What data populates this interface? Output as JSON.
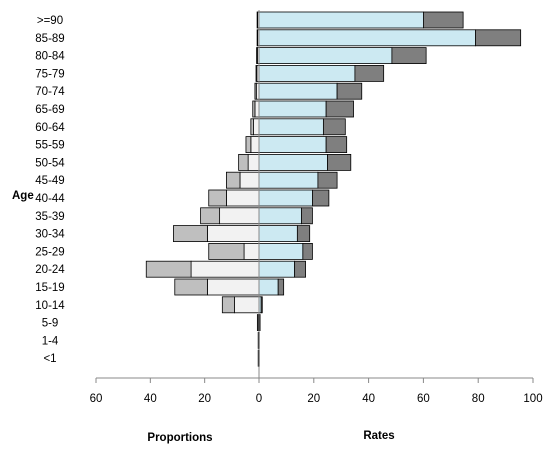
{
  "chart_data": {
    "type": "bar",
    "orientation": "horizontal",
    "categories": [
      ">=90",
      "85-89",
      "80-84",
      "75-79",
      "70-74",
      "65-69",
      "60-64",
      "55-59",
      "50-54",
      "45-49",
      "40-44",
      "35-39",
      "30-34",
      "25-29",
      "20-24",
      "15-19",
      "10-14",
      "5-9",
      "1-4",
      "<1"
    ],
    "left_panel": {
      "label": "Proportions",
      "xlim": [
        0,
        60
      ],
      "ticks": [
        "60",
        "40",
        "20",
        "0"
      ],
      "series": [
        {
          "values": [
            0.5,
            0.5,
            0.6,
            0.8,
            1.0,
            1.5,
            2.0,
            3.0,
            4.0,
            7.0,
            12.0,
            14.5,
            19.0,
            5.5,
            25.0,
            19.0,
            9.0,
            0.3,
            0.2,
            0.2
          ],
          "color": "#f2f2f2"
        },
        {
          "values": [
            0.2,
            0.2,
            0.3,
            0.3,
            0.5,
            0.8,
            1.0,
            1.8,
            3.5,
            5.0,
            6.5,
            7.0,
            12.5,
            13.0,
            16.5,
            12.0,
            4.5,
            0.3,
            0.1,
            0.1
          ],
          "color": "#bfbfbf"
        }
      ]
    },
    "right_panel": {
      "label": "Rates",
      "xlim": [
        0,
        100
      ],
      "ticks": [
        "0",
        "20",
        "40",
        "60",
        "80",
        "100"
      ],
      "series": [
        {
          "values": [
            60,
            79,
            48.5,
            35,
            28.5,
            24.5,
            23.5,
            24.5,
            25,
            21.5,
            19.5,
            15.5,
            14,
            16,
            13,
            7,
            0.8,
            0.3,
            0.1,
            0.1
          ],
          "color": "#cce9f2"
        },
        {
          "values": [
            14.5,
            16.5,
            12.5,
            10.5,
            9,
            10,
            8,
            7.5,
            8.5,
            7,
            6,
            4,
            4.5,
            3.5,
            4,
            2,
            0.4,
            0.1,
            0,
            0
          ],
          "color": "#7f7f7f"
        }
      ]
    },
    "ylabel": "Age",
    "legend": "none",
    "grid": false
  }
}
